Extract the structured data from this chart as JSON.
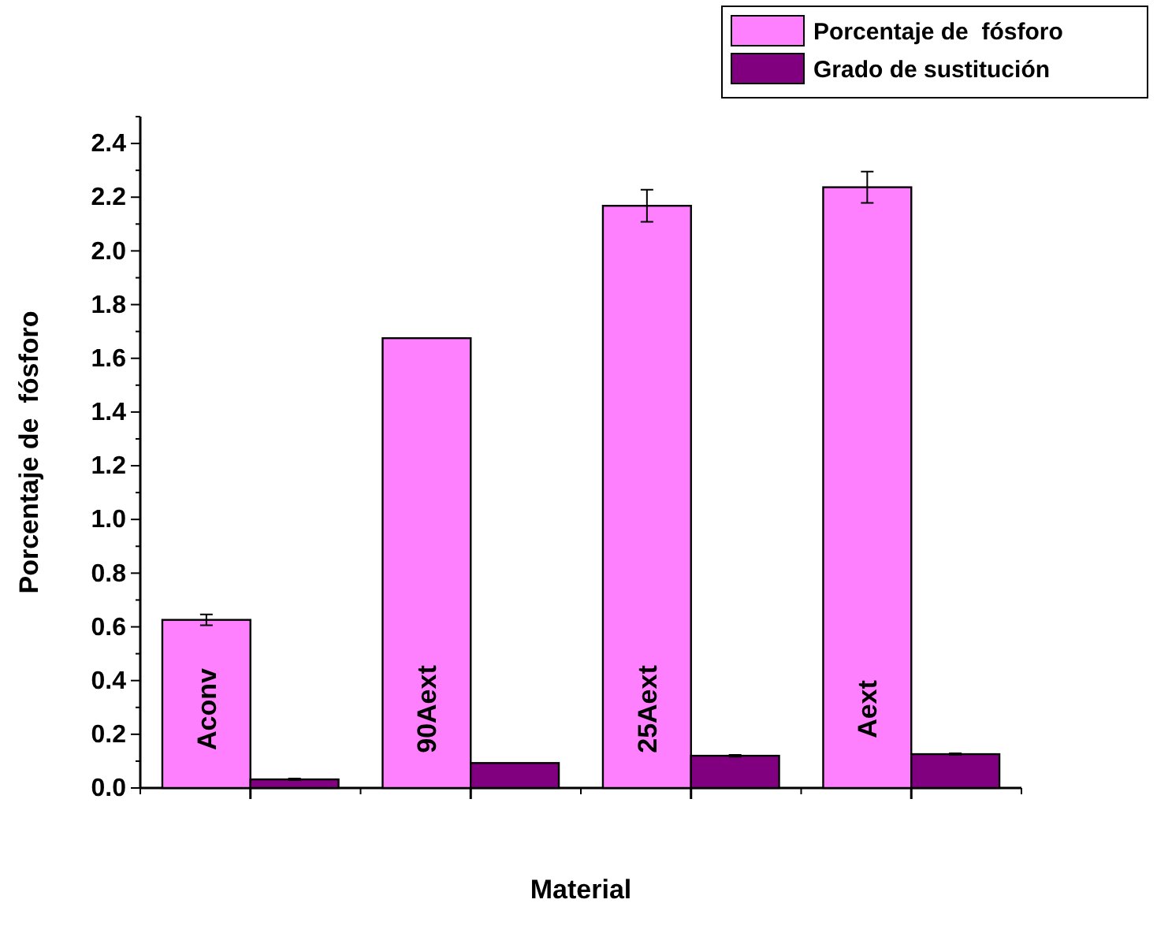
{
  "chart_data": {
    "type": "bar",
    "xlabel": "Material",
    "ylabel": "Porcentaje de  fósforo",
    "categories": [
      "Aconv",
      "90Aext",
      "25Aext",
      "Aext"
    ],
    "series": [
      {
        "name": "Porcentaje de  fósforo",
        "color": "#ff80ff",
        "values": [
          0.626,
          1.675,
          2.168,
          2.237
        ],
        "errors": [
          0.02,
          null,
          0.06,
          0.058
        ]
      },
      {
        "name": "Grado de sustitución",
        "color": "#800080",
        "values": [
          0.032,
          0.093,
          0.12,
          0.126
        ],
        "errors": [
          0.003,
          null,
          0.003,
          0.003
        ]
      }
    ],
    "ylim": [
      0,
      2.5
    ],
    "yticks": [
      {
        "value": 0,
        "label": "0.0"
      },
      {
        "value": 0.2,
        "label": "0.2"
      },
      {
        "value": 0.4,
        "label": "0.4"
      },
      {
        "value": 0.6,
        "label": "0.6"
      },
      {
        "value": 0.8,
        "label": "0.8"
      },
      {
        "value": 1.0,
        "label": "1.0"
      },
      {
        "value": 1.2,
        "label": "1.2"
      },
      {
        "value": 1.4,
        "label": "1.4"
      },
      {
        "value": 1.6,
        "label": "1.6"
      },
      {
        "value": 1.8,
        "label": "1.8"
      },
      {
        "value": 2.0,
        "label": "2.0"
      },
      {
        "value": 2.2,
        "label": "2.2"
      },
      {
        "value": 2.4,
        "label": "2.4"
      }
    ],
    "legend": "top right",
    "grid": false
  }
}
